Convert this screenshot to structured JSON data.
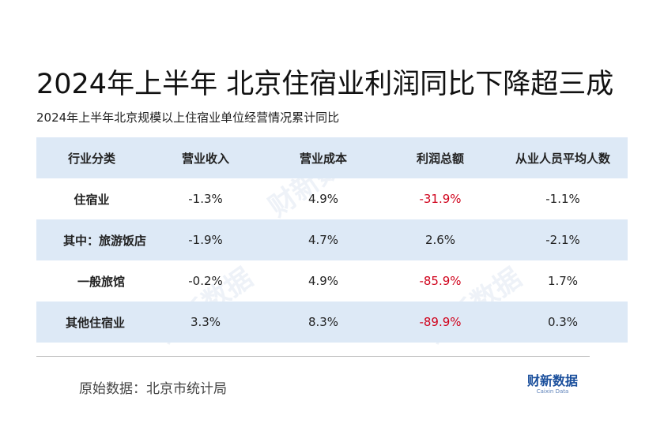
{
  "title": "2024年上半年 北京住宿业利润同比下降超三成",
  "subtitle": "2024年上半年北京规模以上住宿业单位经营情况累计同比",
  "source": "原始数据：北京市统计局",
  "logo": {
    "cn": "财新数据",
    "en": "Caixin Data"
  },
  "watermark": "财新数据",
  "colors": {
    "header_bg": "#dde9f6",
    "negative_highlight": "#d0021b"
  },
  "chart_data": {
    "type": "table",
    "title": "2024年上半年 北京住宿业利润同比下降超三成",
    "subtitle": "2024年上半年北京规模以上住宿业单位经营情况累计同比",
    "columns": [
      "行业分类",
      "营业收入",
      "营业成本",
      "利润总额",
      "从业人员平均人数"
    ],
    "rows": [
      {
        "category": "住宿业",
        "values": [
          "-1.3%",
          "4.9%",
          "-31.9%",
          "-1.1%"
        ]
      },
      {
        "category": "其中：旅游饭店",
        "values": [
          "-1.9%",
          "4.7%",
          "2.6%",
          "-2.1%"
        ]
      },
      {
        "category": "一般旅馆",
        "values": [
          "-0.2%",
          "4.9%",
          "-85.9%",
          "1.7%"
        ]
      },
      {
        "category": "其他住宿业",
        "values": [
          "3.3%",
          "8.3%",
          "-89.9%",
          "0.3%"
        ]
      }
    ]
  }
}
